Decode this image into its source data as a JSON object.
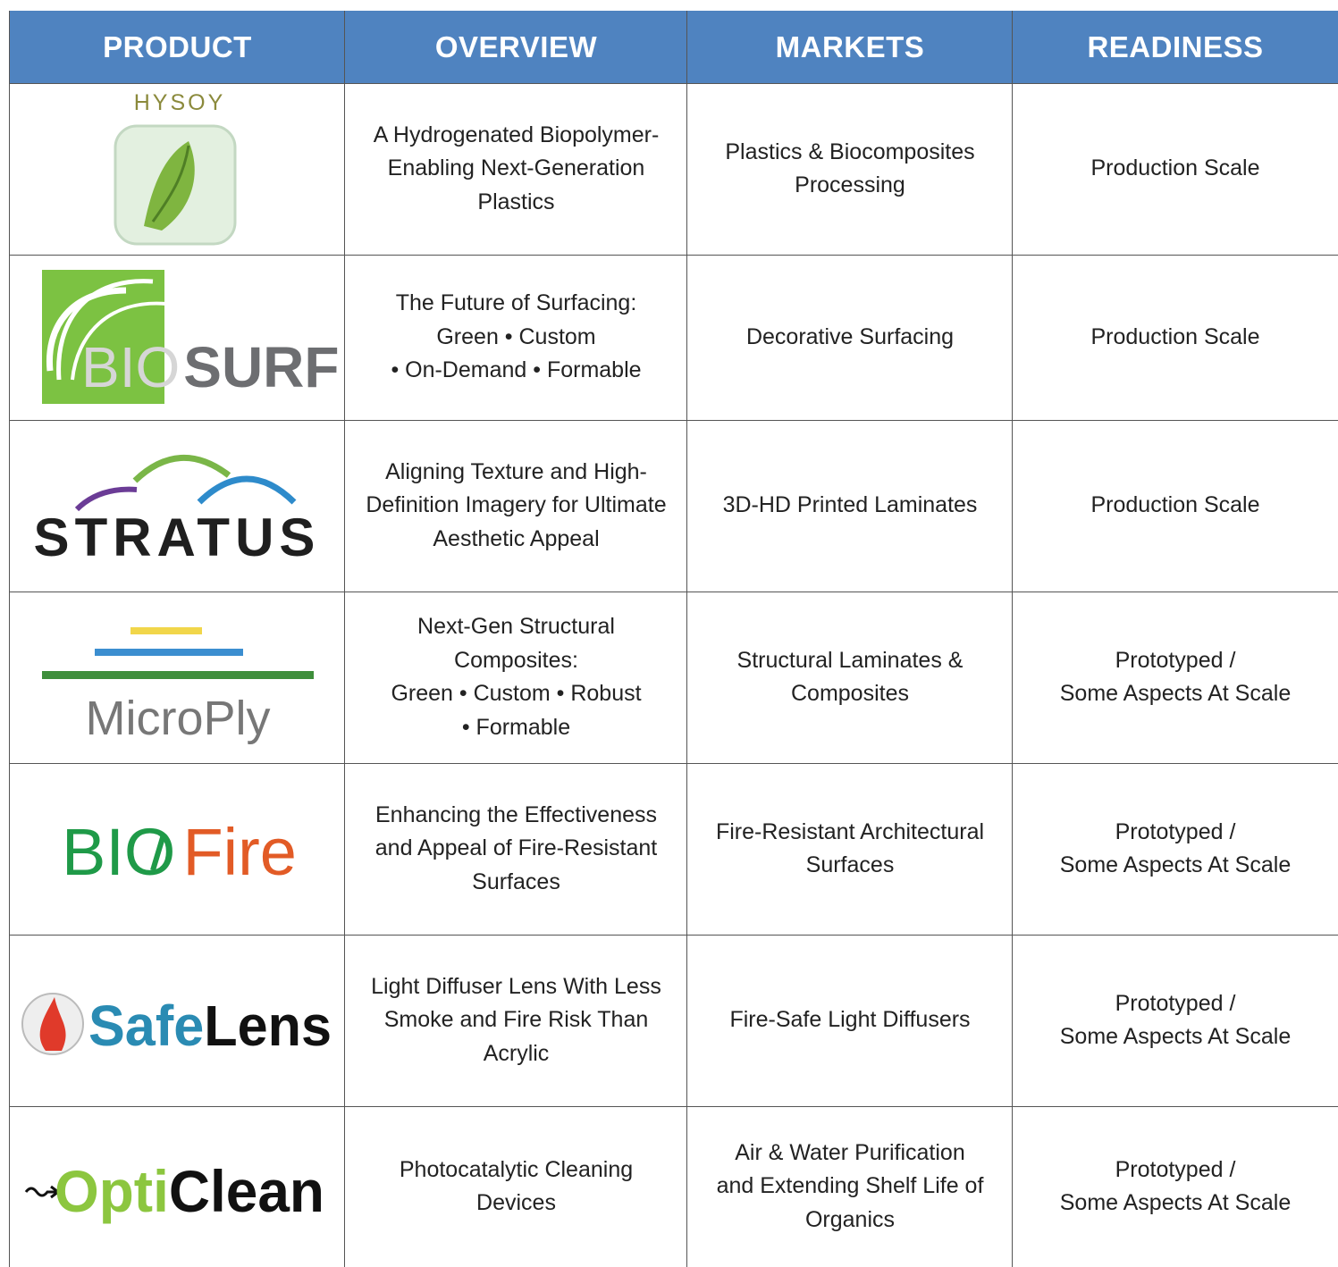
{
  "header": [
    "PRODUCT",
    "OVERVIEW",
    "MARKETS",
    "READINESS"
  ],
  "rows": [
    {
      "product": [
        "HYSOY"
      ],
      "overview": [
        "A Hydrogenated Biopolymer-",
        "Enabling Next-Generation",
        "Plastics"
      ],
      "markets": [
        "Plastics & Biocomposites",
        "Processing"
      ],
      "readiness": [
        "Production Scale"
      ]
    },
    {
      "product": [
        "BIO",
        "SURF"
      ],
      "overview": [
        "The Future of Surfacing:",
        "Green • Custom",
        "• On-Demand • Formable"
      ],
      "markets": [
        "Decorative Surfacing"
      ],
      "readiness": [
        "Production Scale"
      ]
    },
    {
      "product": [
        "STRATUS"
      ],
      "overview": [
        "Aligning Texture and High-",
        "Definition Imagery for Ultimate",
        "Aesthetic Appeal"
      ],
      "markets": [
        "3D-HD Printed Laminates"
      ],
      "readiness": [
        "Production Scale"
      ]
    },
    {
      "product": [
        "MicroPly"
      ],
      "overview": [
        "Next-Gen Structural",
        "Composites:",
        "Green • Custom • Robust",
        "• Formable"
      ],
      "markets": [
        "Structural Laminates &",
        "Composites"
      ],
      "readiness": [
        "Prototyped /",
        "Some Aspects At Scale"
      ]
    },
    {
      "product": [
        "BIO",
        "Fire"
      ],
      "overview": [
        "Enhancing the Effectiveness",
        "and Appeal of Fire-Resistant",
        "Surfaces"
      ],
      "markets": [
        "Fire-Resistant Architectural",
        "Surfaces"
      ],
      "readiness": [
        "Prototyped /",
        "Some Aspects At Scale"
      ]
    },
    {
      "product": [
        "Safe",
        "Lens"
      ],
      "overview": [
        "Light Diffuser Lens With Less",
        "Smoke and Fire Risk Than",
        "Acrylic"
      ],
      "markets": [
        "Fire-Safe Light Diffusers"
      ],
      "readiness": [
        "Prototyped /",
        "Some Aspects At Scale"
      ]
    },
    {
      "product": [
        "Opti",
        "Clean"
      ],
      "overview": [
        "Photocatalytic Cleaning",
        "Devices"
      ],
      "markets": [
        "Air & Water Purification",
        "and Extending Shelf Life of",
        "Organics"
      ],
      "readiness": [
        "Prototyped /",
        "Some Aspects At Scale"
      ]
    }
  ]
}
